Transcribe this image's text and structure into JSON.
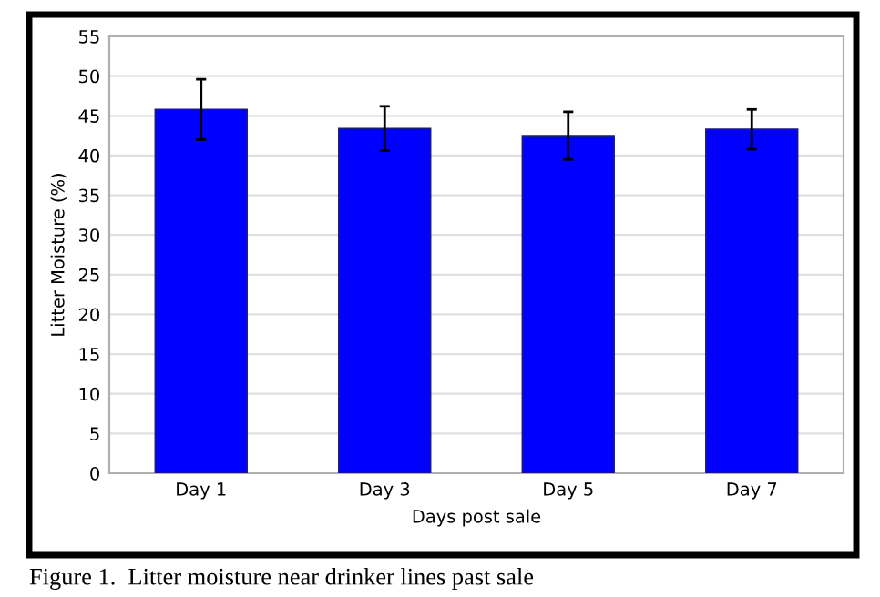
{
  "chart_data": {
    "type": "bar",
    "xlabel": "Days post sale",
    "ylabel": "Litter Moisture (%)",
    "categories": [
      "Day 1",
      "Day 3",
      "Day 5",
      "Day 7"
    ],
    "values": [
      45.8,
      43.4,
      42.5,
      43.3
    ],
    "errors": [
      3.8,
      2.8,
      3.0,
      2.5
    ],
    "color": "#0000ff",
    "ylim": [
      0,
      55
    ],
    "yticks": [
      0,
      5,
      10,
      15,
      20,
      25,
      30,
      35,
      40,
      45,
      50,
      55
    ],
    "grid": "y",
    "annotations": [
      "Figure 1.  Litter moisture near drinker lines past sale"
    ]
  }
}
